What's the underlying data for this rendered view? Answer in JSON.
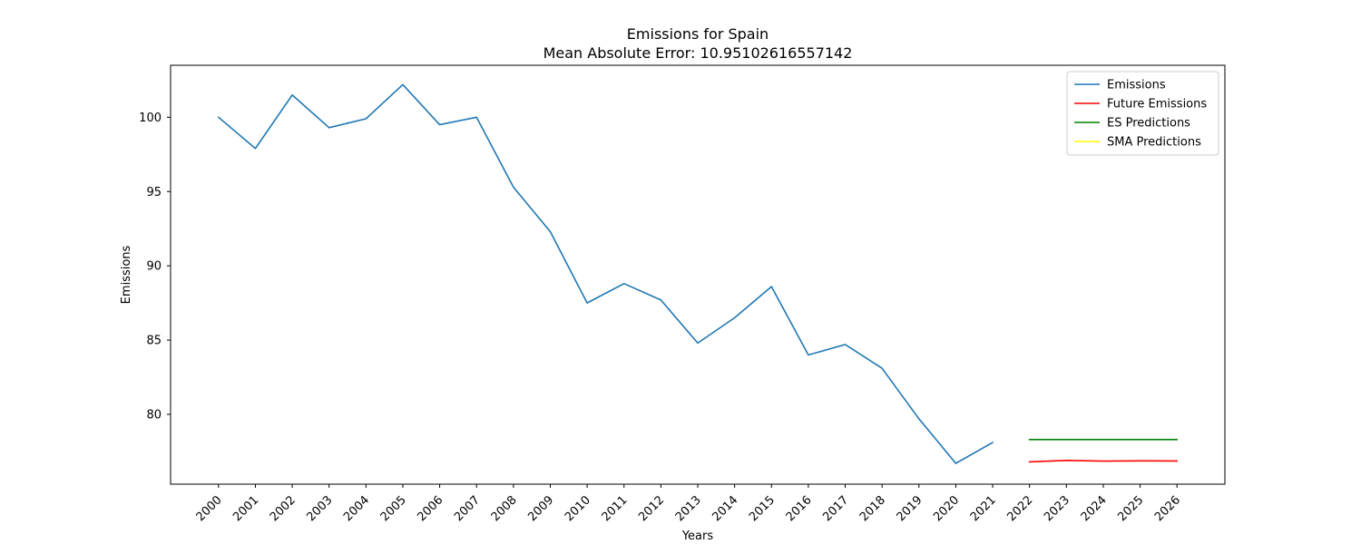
{
  "chart_data": {
    "type": "line",
    "title": "Emissions for Spain",
    "subtitle": "Mean Absolute Error: 10.95102616557142",
    "xlabel": "Years",
    "ylabel": "Emissions",
    "xlim": [
      1998.7,
      2027.3
    ],
    "ylim": [
      75.3,
      103.5
    ],
    "x_ticks": [
      2000,
      2001,
      2002,
      2003,
      2004,
      2005,
      2006,
      2007,
      2008,
      2009,
      2010,
      2011,
      2012,
      2013,
      2014,
      2015,
      2016,
      2017,
      2018,
      2019,
      2020,
      2021,
      2022,
      2023,
      2024,
      2025,
      2026
    ],
    "y_ticks": [
      80,
      85,
      90,
      95,
      100
    ],
    "grid": false,
    "legend_position": "top-right",
    "series": [
      {
        "name": "Emissions",
        "color": "#1f77b4",
        "x": [
          2000,
          2001,
          2002,
          2003,
          2004,
          2005,
          2006,
          2007,
          2008,
          2009,
          2010,
          2011,
          2012,
          2013,
          2014,
          2015,
          2016,
          2017,
          2018,
          2019,
          2020,
          2021
        ],
        "values": [
          100.0,
          97.9,
          101.5,
          99.3,
          99.9,
          102.2,
          99.5,
          100.0,
          95.3,
          92.3,
          87.5,
          88.8,
          87.7,
          84.8,
          86.5,
          88.6,
          84.0,
          84.7,
          83.1,
          79.7,
          76.7,
          78.1
        ]
      },
      {
        "name": "Future Emissions",
        "color": "#ff0000",
        "x": [
          2022,
          2023,
          2024,
          2025,
          2026
        ],
        "values": [
          76.8,
          76.9,
          76.85,
          76.87,
          76.86
        ]
      },
      {
        "name": "ES Predictions",
        "color": "#008000",
        "x": [
          2022,
          2023,
          2024,
          2025,
          2026
        ],
        "values": [
          78.3,
          78.3,
          78.3,
          78.3,
          78.3
        ]
      },
      {
        "name": "SMA Predictions",
        "color": "#ffff00",
        "x": [],
        "values": []
      }
    ]
  }
}
